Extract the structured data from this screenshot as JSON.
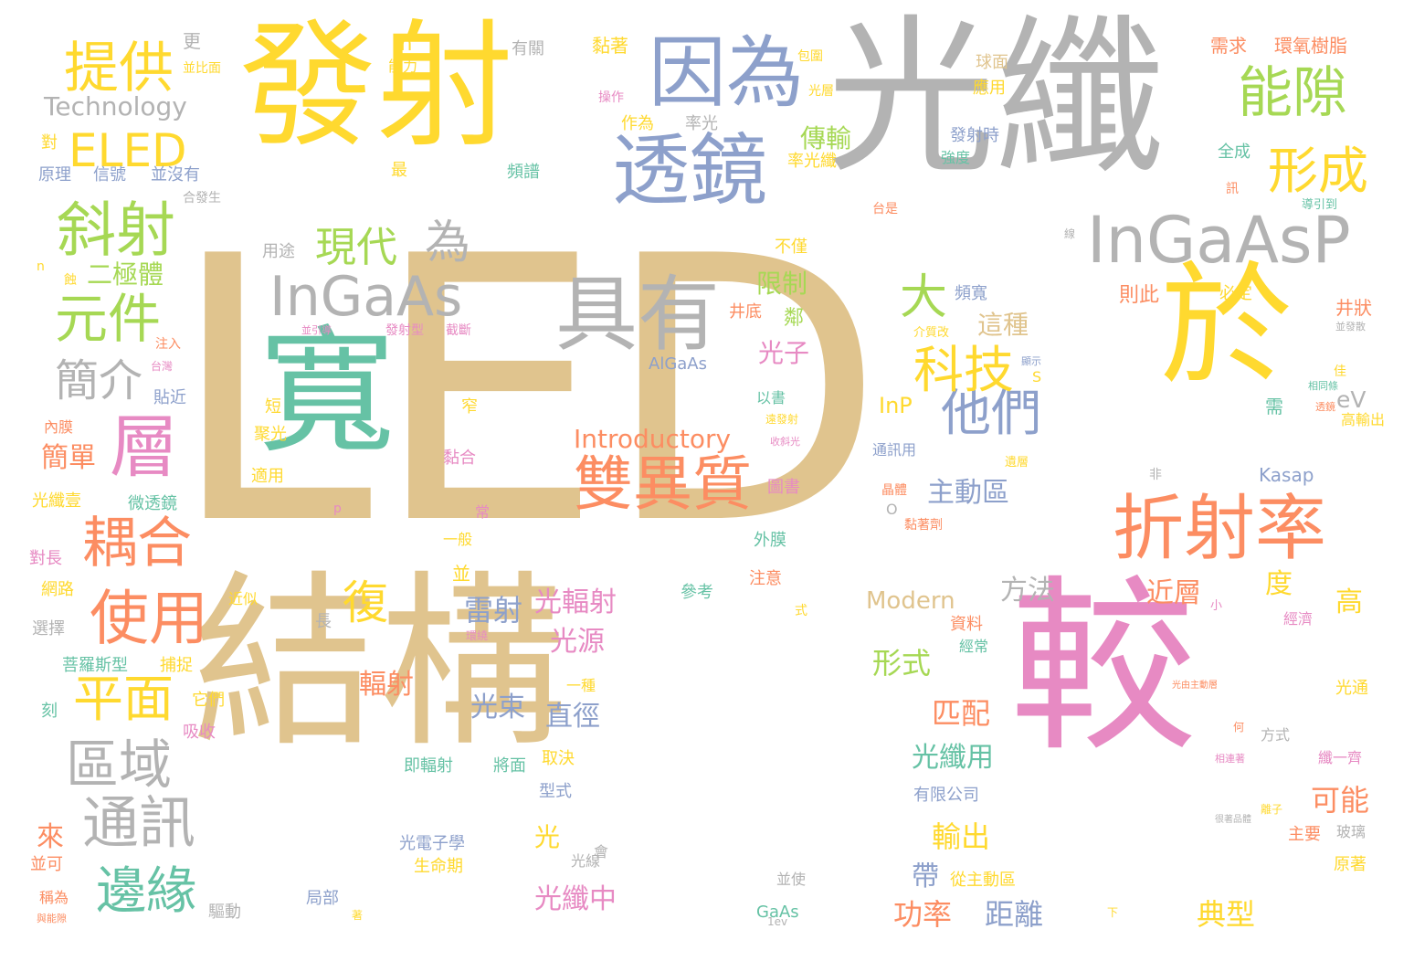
{
  "palette": {
    "tan": "#e0c48e",
    "yellow": "#ffd92f",
    "gray": "#b3b3b3",
    "teal": "#66c2a5",
    "pink": "#e78ac3",
    "blue": "#8da0cb",
    "orange": "#fc8d62",
    "green": "#a6d854"
  },
  "words": [
    {
      "text": "LED",
      "color": "tan"
    },
    {
      "text": "光纖",
      "color": "gray"
    },
    {
      "text": "發射",
      "color": "yellow"
    },
    {
      "text": "結構",
      "color": "tan"
    },
    {
      "text": "較",
      "color": "pink"
    },
    {
      "text": "寬",
      "color": "teal"
    },
    {
      "text": "於",
      "color": "yellow"
    },
    {
      "text": "因為",
      "color": "blue"
    },
    {
      "text": "透鏡",
      "color": "blue"
    },
    {
      "text": "具有",
      "color": "gray"
    },
    {
      "text": "InGaAsP",
      "color": "gray"
    },
    {
      "text": "折射率",
      "color": "orange"
    },
    {
      "text": "雙異質",
      "color": "orange"
    },
    {
      "text": "層",
      "color": "pink"
    },
    {
      "text": "InGaAs",
      "color": "gray"
    },
    {
      "text": "提供",
      "color": "yellow"
    },
    {
      "text": "ELED",
      "color": "yellow"
    },
    {
      "text": "斜射",
      "color": "green"
    },
    {
      "text": "元件",
      "color": "green"
    },
    {
      "text": "能隙",
      "color": "green"
    },
    {
      "text": "形成",
      "color": "yellow"
    },
    {
      "text": "使用",
      "color": "orange"
    },
    {
      "text": "耦合",
      "color": "orange"
    },
    {
      "text": "平面",
      "color": "yellow"
    },
    {
      "text": "區域",
      "color": "gray"
    },
    {
      "text": "通訊",
      "color": "gray"
    },
    {
      "text": "邊緣",
      "color": "teal"
    },
    {
      "text": "他們",
      "color": "blue"
    },
    {
      "text": "科技",
      "color": "yellow"
    },
    {
      "text": "大",
      "color": "green"
    },
    {
      "text": "為",
      "color": "gray"
    },
    {
      "text": "現代",
      "color": "green"
    },
    {
      "text": "簡介",
      "color": "gray"
    },
    {
      "text": "復",
      "color": "yellow"
    },
    {
      "text": "Technology",
      "color": "gray"
    },
    {
      "text": "Introductory",
      "color": "orange"
    },
    {
      "text": "Modern",
      "color": "tan"
    },
    {
      "text": "二極體",
      "color": "green"
    },
    {
      "text": "主動區",
      "color": "blue"
    },
    {
      "text": "這種",
      "color": "tan"
    },
    {
      "text": "傳輸",
      "color": "green"
    },
    {
      "text": "光子",
      "color": "pink"
    },
    {
      "text": "限制",
      "color": "green"
    },
    {
      "text": "雷射",
      "color": "blue"
    },
    {
      "text": "光輻射",
      "color": "pink"
    },
    {
      "text": "光源",
      "color": "pink"
    },
    {
      "text": "方法",
      "color": "gray"
    },
    {
      "text": "近層",
      "color": "orange"
    },
    {
      "text": "度",
      "color": "yellow"
    },
    {
      "text": "高",
      "color": "yellow"
    },
    {
      "text": "形式",
      "color": "green"
    },
    {
      "text": "輻射",
      "color": "orange"
    },
    {
      "text": "光束",
      "color": "blue"
    },
    {
      "text": "直徑",
      "color": "blue"
    },
    {
      "text": "匹配",
      "color": "orange"
    },
    {
      "text": "光纖用",
      "color": "teal"
    },
    {
      "text": "可能",
      "color": "orange"
    },
    {
      "text": "輸出",
      "color": "yellow"
    },
    {
      "text": "帶",
      "color": "blue"
    },
    {
      "text": "功率",
      "color": "orange"
    },
    {
      "text": "距離",
      "color": "blue"
    },
    {
      "text": "典型",
      "color": "yellow"
    },
    {
      "text": "光纖中",
      "color": "pink"
    },
    {
      "text": "光",
      "color": "yellow"
    },
    {
      "text": "來",
      "color": "orange"
    },
    {
      "text": "簡單",
      "color": "orange"
    },
    {
      "text": "InP",
      "color": "yellow"
    },
    {
      "text": "eV",
      "color": "gray"
    },
    {
      "text": "Kasap",
      "color": "blue"
    },
    {
      "text": "AlGaAs",
      "color": "blue"
    },
    {
      "text": "GaAs",
      "color": "teal"
    },
    {
      "text": "m",
      "color": "yellow"
    },
    {
      "text": "更",
      "color": "gray"
    },
    {
      "text": "有關",
      "color": "gray"
    },
    {
      "text": "黏著",
      "color": "yellow"
    },
    {
      "text": "需求",
      "color": "orange"
    },
    {
      "text": "環氧樹脂",
      "color": "orange"
    },
    {
      "text": "球面",
      "color": "tan"
    },
    {
      "text": "應用",
      "color": "yellow"
    },
    {
      "text": "發射時",
      "color": "blue"
    },
    {
      "text": "強度",
      "color": "teal"
    },
    {
      "text": "全成",
      "color": "teal"
    },
    {
      "text": "頻寬",
      "color": "blue"
    },
    {
      "text": "必定",
      "color": "yellow"
    },
    {
      "text": "則此",
      "color": "orange"
    },
    {
      "text": "井狀",
      "color": "orange"
    },
    {
      "text": "頻譜",
      "color": "teal"
    },
    {
      "text": "作為",
      "color": "yellow"
    },
    {
      "text": "率光",
      "color": "gray"
    },
    {
      "text": "率光纖",
      "color": "yellow"
    },
    {
      "text": "信號",
      "color": "blue"
    },
    {
      "text": "原理",
      "color": "blue"
    },
    {
      "text": "並沒有",
      "color": "blue"
    },
    {
      "text": "對",
      "color": "yellow"
    },
    {
      "text": "最",
      "color": "yellow"
    },
    {
      "text": "用途",
      "color": "gray"
    },
    {
      "text": "不僅",
      "color": "yellow"
    },
    {
      "text": "井底",
      "color": "orange"
    },
    {
      "text": "貼近",
      "color": "blue"
    },
    {
      "text": "注入",
      "color": "orange"
    },
    {
      "text": "內膜",
      "color": "orange"
    },
    {
      "text": "短",
      "color": "yellow"
    },
    {
      "text": "窄",
      "color": "yellow"
    },
    {
      "text": "聚光",
      "color": "yellow"
    },
    {
      "text": "黏合",
      "color": "pink"
    },
    {
      "text": "適用",
      "color": "yellow"
    },
    {
      "text": "微透鏡",
      "color": "teal"
    },
    {
      "text": "光纖壹",
      "color": "yellow"
    },
    {
      "text": "對長",
      "color": "pink"
    },
    {
      "text": "網路",
      "color": "yellow"
    },
    {
      "text": "選擇",
      "color": "gray"
    },
    {
      "text": "近似",
      "color": "yellow"
    },
    {
      "text": "長",
      "color": "gray"
    },
    {
      "text": "菩羅斯型",
      "color": "teal"
    },
    {
      "text": "捕捉",
      "color": "yellow"
    },
    {
      "text": "它們",
      "color": "yellow"
    },
    {
      "text": "吸收",
      "color": "pink"
    },
    {
      "text": "刻",
      "color": "teal"
    },
    {
      "text": "即輻射",
      "color": "teal"
    },
    {
      "text": "將面",
      "color": "teal"
    },
    {
      "text": "取決",
      "color": "yellow"
    },
    {
      "text": "型式",
      "color": "blue"
    },
    {
      "text": "光電子學",
      "color": "blue"
    },
    {
      "text": "生命期",
      "color": "yellow"
    },
    {
      "text": "光線",
      "color": "gray"
    },
    {
      "text": "會",
      "color": "gray"
    },
    {
      "text": "並使",
      "color": "gray"
    },
    {
      "text": "局部",
      "color": "blue"
    },
    {
      "text": "驅動",
      "color": "gray"
    },
    {
      "text": "並可",
      "color": "orange"
    },
    {
      "text": "稱為",
      "color": "orange"
    },
    {
      "text": "從主動區",
      "color": "yellow"
    },
    {
      "text": "有限公司",
      "color": "blue"
    },
    {
      "text": "參考",
      "color": "teal"
    },
    {
      "text": "注意",
      "color": "orange"
    },
    {
      "text": "外膜",
      "color": "teal"
    },
    {
      "text": "式",
      "color": "yellow"
    },
    {
      "text": "資料",
      "color": "orange"
    },
    {
      "text": "經常",
      "color": "teal"
    },
    {
      "text": "經濟",
      "color": "pink"
    },
    {
      "text": "光通",
      "color": "yellow"
    },
    {
      "text": "方式",
      "color": "gray"
    },
    {
      "text": "纖一齊",
      "color": "pink"
    },
    {
      "text": "主要",
      "color": "orange"
    },
    {
      "text": "玻璃",
      "color": "gray"
    },
    {
      "text": "原著",
      "color": "yellow"
    },
    {
      "text": "高輸出",
      "color": "yellow"
    },
    {
      "text": "需",
      "color": "teal"
    },
    {
      "text": "非",
      "color": "gray"
    },
    {
      "text": "通訊用",
      "color": "blue"
    },
    {
      "text": "黏著劑",
      "color": "orange"
    },
    {
      "text": "晶體",
      "color": "orange"
    },
    {
      "text": "圖書",
      "color": "pink"
    },
    {
      "text": "以書",
      "color": "teal"
    },
    {
      "text": "鄰",
      "color": "green"
    },
    {
      "text": "一種",
      "color": "yellow"
    },
    {
      "text": "一般",
      "color": "yellow"
    },
    {
      "text": "常",
      "color": "pink"
    },
    {
      "text": "並",
      "color": "yellow"
    },
    {
      "text": "p",
      "color": "pink"
    },
    {
      "text": "S",
      "color": "yellow"
    },
    {
      "text": "n",
      "color": "yellow"
    },
    {
      "text": "下",
      "color": "yellow"
    },
    {
      "text": "1ev",
      "color": "gray"
    },
    {
      "text": "著",
      "color": "yellow"
    },
    {
      "text": "線",
      "color": "gray"
    },
    {
      "text": "包圍",
      "color": "yellow"
    },
    {
      "text": "光層",
      "color": "yellow"
    },
    {
      "text": "能力",
      "color": "yellow"
    },
    {
      "text": "並比面",
      "color": "yellow"
    },
    {
      "text": "操作",
      "color": "pink"
    },
    {
      "text": "合發生",
      "color": "gray"
    },
    {
      "text": "台是",
      "color": "orange"
    },
    {
      "text": "導引到",
      "color": "teal"
    },
    {
      "text": "訊",
      "color": "orange"
    },
    {
      "text": "介質改",
      "color": "yellow"
    },
    {
      "text": "佳",
      "color": "yellow"
    },
    {
      "text": "小",
      "color": "pink"
    },
    {
      "text": "何",
      "color": "orange"
    },
    {
      "text": "離子",
      "color": "yellow"
    },
    {
      "text": "蝕",
      "color": "yellow"
    },
    {
      "text": "台灣",
      "color": "pink"
    },
    {
      "text": "遺層",
      "color": "yellow"
    },
    {
      "text": "並引導",
      "color": "pink"
    },
    {
      "text": "發射型",
      "color": "pink"
    },
    {
      "text": "截斷",
      "color": "pink"
    },
    {
      "text": "遠發射",
      "color": "yellow"
    },
    {
      "text": "收斜光",
      "color": "pink"
    },
    {
      "text": "顯示",
      "color": "blue"
    },
    {
      "text": "相同條",
      "color": "teal"
    },
    {
      "text": "透鏡",
      "color": "orange"
    },
    {
      "text": "並發散",
      "color": "gray"
    },
    {
      "text": "光由主動層",
      "color": "orange"
    },
    {
      "text": "相連著",
      "color": "pink"
    },
    {
      "text": "環繞",
      "color": "pink"
    },
    {
      "text": "與能隙",
      "color": "orange"
    },
    {
      "text": "很著品體",
      "color": "gray"
    },
    {
      "text": "O",
      "color": "gray"
    }
  ]
}
